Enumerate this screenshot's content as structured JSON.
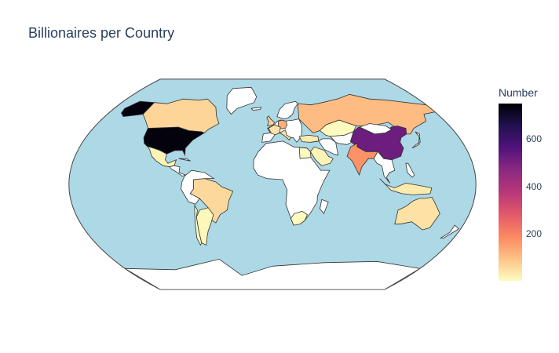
{
  "title": "Billionaires per Country",
  "colors": {
    "ocean": "#add8e6",
    "land_no_data": "#ffffff",
    "border": "#333333",
    "text": "#2a3f5f"
  },
  "colorbar": {
    "title": "Number",
    "range": [
      1,
      750
    ],
    "ticks": [
      200,
      400,
      600
    ],
    "colorscale": [
      "#fcfdbf",
      "#fec287",
      "#fb8861",
      "#e3596b",
      "#b73779",
      "#8c2981",
      "#51127c",
      "#221150",
      "#000004"
    ]
  },
  "chart_data": {
    "type": "choropleth",
    "title": "Billionaires per Country",
    "colorbar_title": "Number",
    "projection": "natural earth",
    "locations": [
      {
        "country": "United States",
        "value": 740
      },
      {
        "country": "China",
        "value": 520
      },
      {
        "country": "India",
        "value": 170
      },
      {
        "country": "Germany",
        "value": 125
      },
      {
        "country": "Russia",
        "value": 105
      },
      {
        "country": "Canada",
        "value": 65
      },
      {
        "country": "United Kingdom",
        "value": 75
      },
      {
        "country": "Brazil",
        "value": 60
      },
      {
        "country": "Australia",
        "value": 45
      },
      {
        "country": "Italy",
        "value": 55
      },
      {
        "country": "France",
        "value": 45
      },
      {
        "country": "Japan",
        "value": 45
      },
      {
        "country": "Mexico",
        "value": 15
      },
      {
        "country": "Argentina",
        "value": 10
      },
      {
        "country": "Chile",
        "value": 8
      },
      {
        "country": "South Africa",
        "value": 6
      },
      {
        "country": "Indonesia",
        "value": 30
      },
      {
        "country": "Turkey",
        "value": 30
      },
      {
        "country": "Saudi Arabia",
        "value": 15
      },
      {
        "country": "Egypt",
        "value": 6
      },
      {
        "country": "Kazakhstan",
        "value": 5
      }
    ]
  }
}
